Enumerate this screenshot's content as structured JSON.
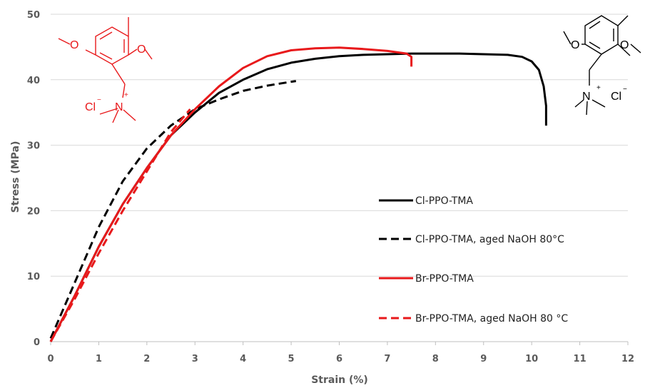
{
  "chart_data": {
    "type": "line",
    "title": "",
    "xlabel": "Strain (%)",
    "ylabel": "Stress (MPa)",
    "xlim": [
      0,
      12
    ],
    "ylim": [
      0,
      50
    ],
    "xticks": [
      "0",
      "1",
      "2",
      "3",
      "4",
      "5",
      "6",
      "7",
      "8",
      "9",
      "10",
      "11",
      "12"
    ],
    "yticks": [
      "0",
      "10",
      "20",
      "30",
      "40",
      "50"
    ],
    "grid": "horizontal",
    "legend_position": "right",
    "series": [
      {
        "name": "Cl-PPO-TMA",
        "color": "#000000",
        "dash": "solid",
        "x": [
          0,
          0.5,
          1,
          1.5,
          2,
          2.5,
          3,
          3.5,
          4,
          4.5,
          5,
          5.5,
          6,
          6.5,
          7,
          7.5,
          8,
          8.5,
          9,
          9.5,
          9.8,
          10.0,
          10.15,
          10.25,
          10.3,
          10.3
        ],
        "y": [
          0,
          7,
          14.5,
          21,
          26.5,
          31.5,
          35,
          38,
          40,
          41.6,
          42.6,
          43.2,
          43.6,
          43.8,
          43.9,
          44,
          44,
          44,
          43.9,
          43.8,
          43.5,
          42.8,
          41.5,
          39,
          36,
          33
        ]
      },
      {
        "name": "Cl-PPO-TMA, aged NaOH 80°C",
        "color": "#000000",
        "dash": "dashed",
        "x": [
          0,
          0.5,
          1,
          1.5,
          2,
          2.5,
          3,
          3.5,
          4,
          4.5,
          5,
          5.1
        ],
        "y": [
          0.5,
          9,
          17.5,
          24.5,
          29.5,
          33,
          35.5,
          37,
          38.3,
          39.1,
          39.7,
          39.8
        ]
      },
      {
        "name": "Br-PPO-TMA",
        "color": "#e8191b",
        "dash": "solid",
        "x": [
          0,
          0.5,
          1,
          1.5,
          2,
          2.5,
          3,
          3.5,
          4,
          4.5,
          5,
          5.5,
          6,
          6.5,
          7,
          7.4,
          7.5,
          7.5
        ],
        "y": [
          0,
          7,
          14.5,
          21,
          26.5,
          31.5,
          35.5,
          39,
          41.8,
          43.6,
          44.5,
          44.8,
          44.9,
          44.7,
          44.4,
          44,
          43.5,
          42
        ]
      },
      {
        "name": "Br-PPO-TMA, aged NaOH 80 °C",
        "color": "#e8191b",
        "dash": "dashed",
        "x": [
          0,
          0.5,
          1,
          1.5,
          2,
          2.5,
          2.9
        ],
        "y": [
          0,
          6.5,
          13.5,
          20,
          26,
          32,
          35.5
        ]
      }
    ],
    "annotations": {
      "left_structure": {
        "color": "#e8191b",
        "anion_label": "Cl",
        "anion_charge": "−",
        "cation_label": "N",
        "cation_charge": "+"
      },
      "right_structure": {
        "color": "#000000",
        "anion_label": "Cl",
        "anion_charge": "−",
        "cation_label": "N",
        "cation_charge": "+"
      }
    }
  }
}
